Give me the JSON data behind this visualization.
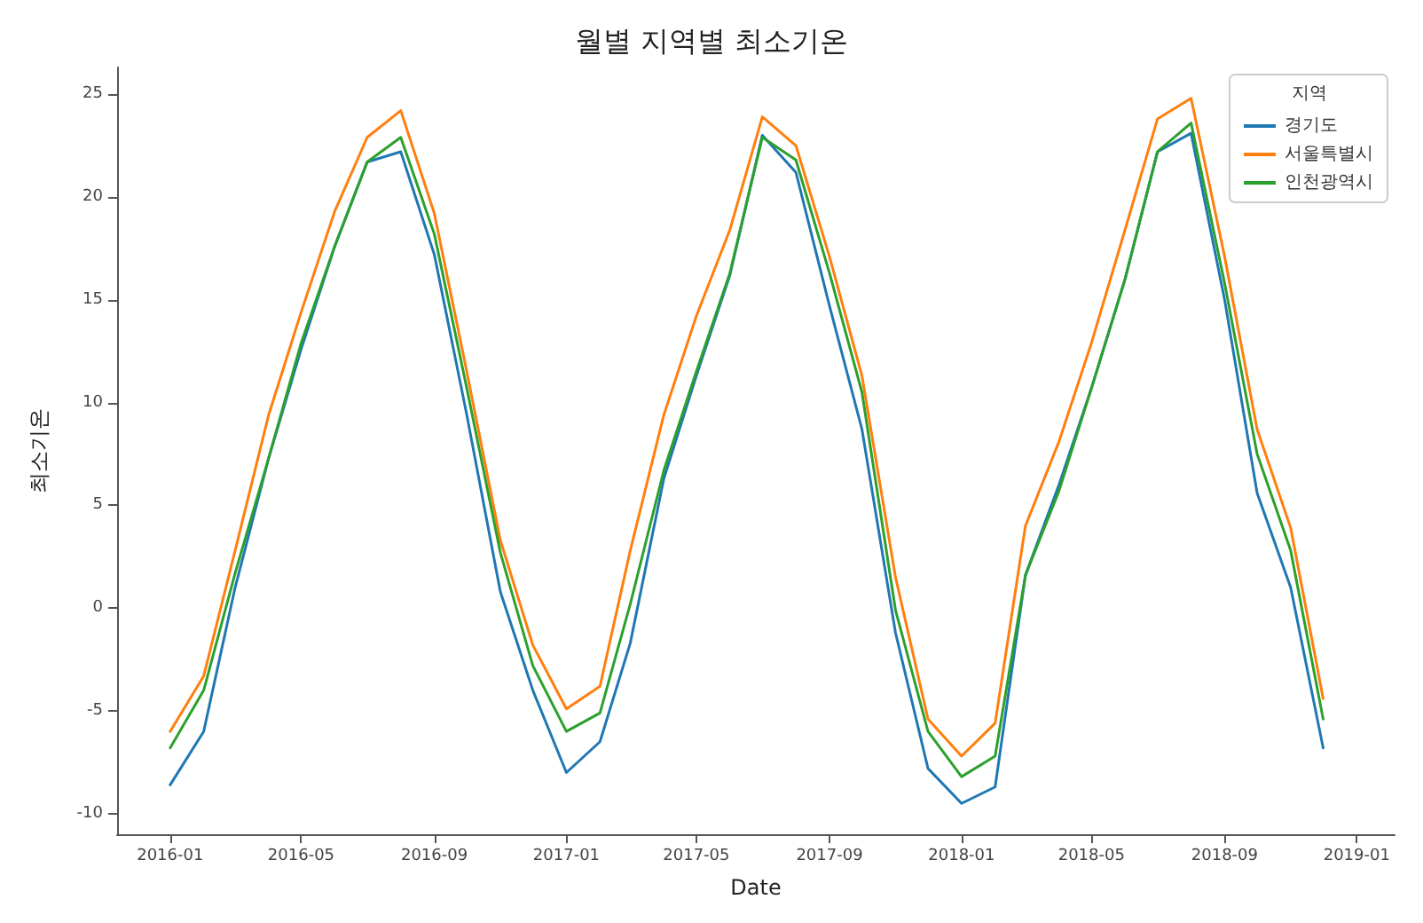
{
  "chart_data": {
    "type": "line",
    "title": "월별 지역별 최소기온",
    "xlabel": "Date",
    "ylabel": "최소기온",
    "legend_title": "지역",
    "x": [
      "2016-01",
      "2016-02",
      "2016-03",
      "2016-04",
      "2016-05",
      "2016-06",
      "2016-07",
      "2016-08",
      "2016-09",
      "2016-10",
      "2016-11",
      "2016-12",
      "2017-01",
      "2017-02",
      "2017-03",
      "2017-04",
      "2017-05",
      "2017-06",
      "2017-07",
      "2017-08",
      "2017-09",
      "2017-10",
      "2017-11",
      "2017-12",
      "2018-01",
      "2018-02",
      "2018-03",
      "2018-04",
      "2018-05",
      "2018-06",
      "2018-07",
      "2018-08",
      "2018-09",
      "2018-10",
      "2018-11",
      "2018-12"
    ],
    "series": [
      {
        "name": "경기도",
        "color": "#1f77b4",
        "values": [
          -8.6,
          -6.0,
          1.0,
          7.3,
          12.6,
          17.6,
          21.7,
          22.2,
          17.2,
          9.4,
          0.8,
          -4.0,
          -8.0,
          -6.5,
          -1.7,
          6.3,
          11.3,
          16.2,
          23.0,
          21.2,
          14.7,
          8.7,
          -1.2,
          -7.8,
          -9.5,
          -8.7,
          1.6,
          6.0,
          10.7,
          16.0,
          22.2,
          23.1,
          15.0,
          5.6,
          1.0,
          -6.8
        ]
      },
      {
        "name": "서울특별시",
        "color": "#ff7f0e",
        "values": [
          -6.0,
          -3.3,
          2.8,
          9.4,
          14.4,
          19.3,
          22.9,
          24.2,
          19.2,
          11.5,
          3.3,
          -1.8,
          -4.9,
          -3.8,
          2.8,
          9.4,
          14.2,
          18.4,
          23.9,
          22.5,
          17.1,
          11.3,
          1.5,
          -5.4,
          -7.2,
          -5.6,
          4.0,
          8.1,
          12.9,
          18.4,
          23.8,
          24.8,
          17.1,
          8.7,
          3.9,
          -4.4
        ]
      },
      {
        "name": "인천광역시",
        "color": "#2ca02c",
        "values": [
          -6.8,
          -4.0,
          1.7,
          7.3,
          12.9,
          17.6,
          21.7,
          22.9,
          18.2,
          10.7,
          2.7,
          -2.8,
          -6.0,
          -5.1,
          0.2,
          6.7,
          11.5,
          16.3,
          22.9,
          21.8,
          16.3,
          10.5,
          -0.1,
          -6.0,
          -8.2,
          -7.2,
          1.6,
          5.7,
          10.7,
          16.0,
          22.2,
          23.6,
          15.8,
          7.5,
          2.8,
          -5.4
        ]
      }
    ],
    "xlim": [
      "2015-11-13",
      "2019-02-05"
    ],
    "xticks": [
      "2016-01",
      "2016-05",
      "2016-09",
      "2017-01",
      "2017-05",
      "2017-09",
      "2018-01",
      "2018-05",
      "2018-09",
      "2019-01"
    ],
    "ylim": [
      -11,
      26.3
    ],
    "yticks": [
      -10,
      -5,
      0,
      5,
      10,
      15,
      20,
      25
    ],
    "grid": false,
    "legend": "top right",
    "marker": "none",
    "line_style": "solid"
  }
}
